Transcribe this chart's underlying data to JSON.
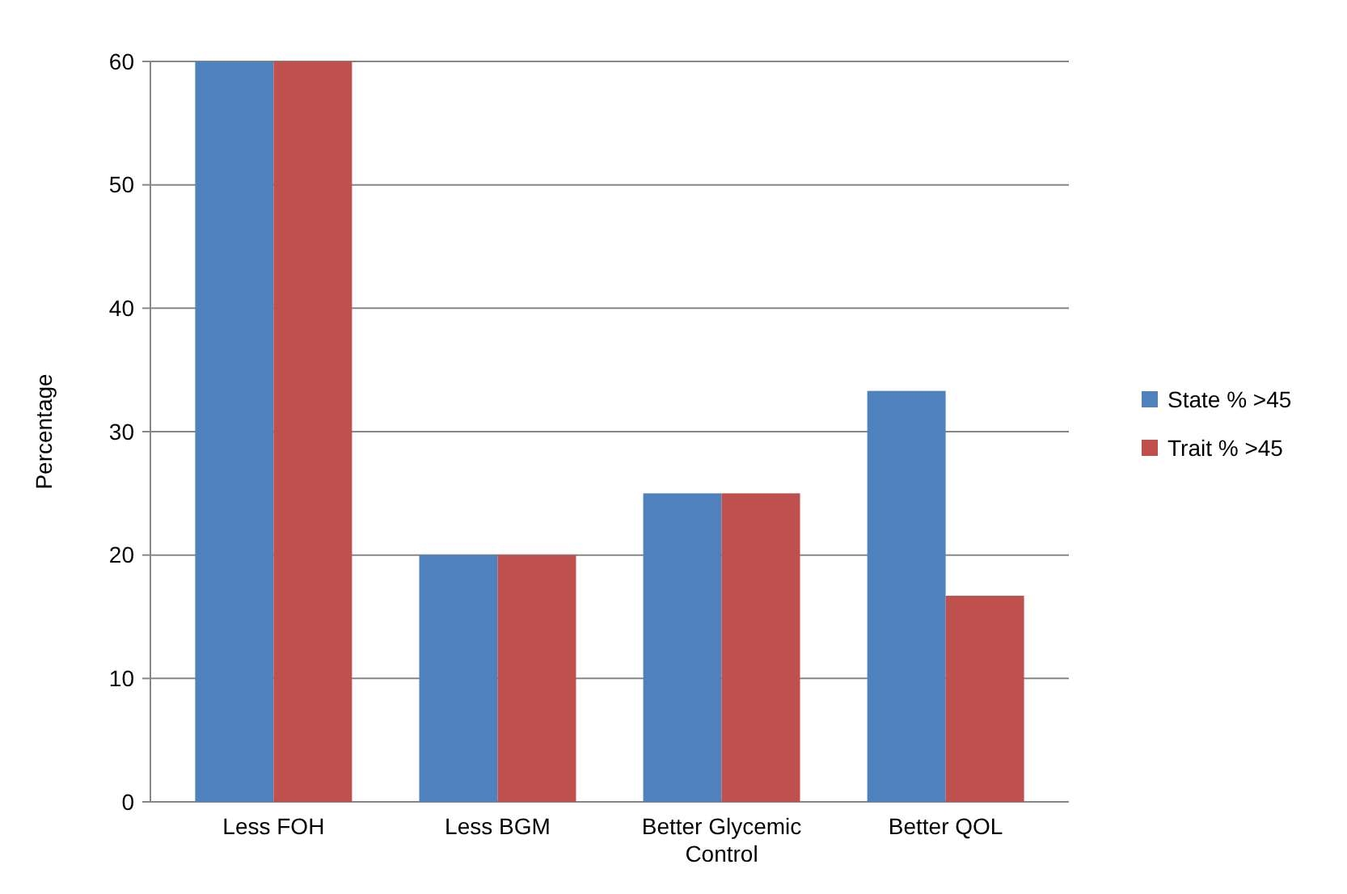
{
  "chart_data": {
    "type": "bar",
    "ylabel": "Percentage",
    "categories": [
      "Less FOH",
      "Less BGM",
      "Better Glycemic Control",
      "Better QOL"
    ],
    "series": [
      {
        "name": "State % >45",
        "color": "#4f81bd",
        "values": [
          60,
          20,
          25,
          33.3
        ]
      },
      {
        "name": "Trait % >45",
        "color": "#c0504d",
        "values": [
          60,
          20,
          25,
          16.7
        ]
      }
    ],
    "ylim": [
      0,
      60
    ],
    "yticks": [
      0,
      10,
      20,
      30,
      40,
      50,
      60
    ],
    "grid": "y",
    "legend": "right"
  }
}
